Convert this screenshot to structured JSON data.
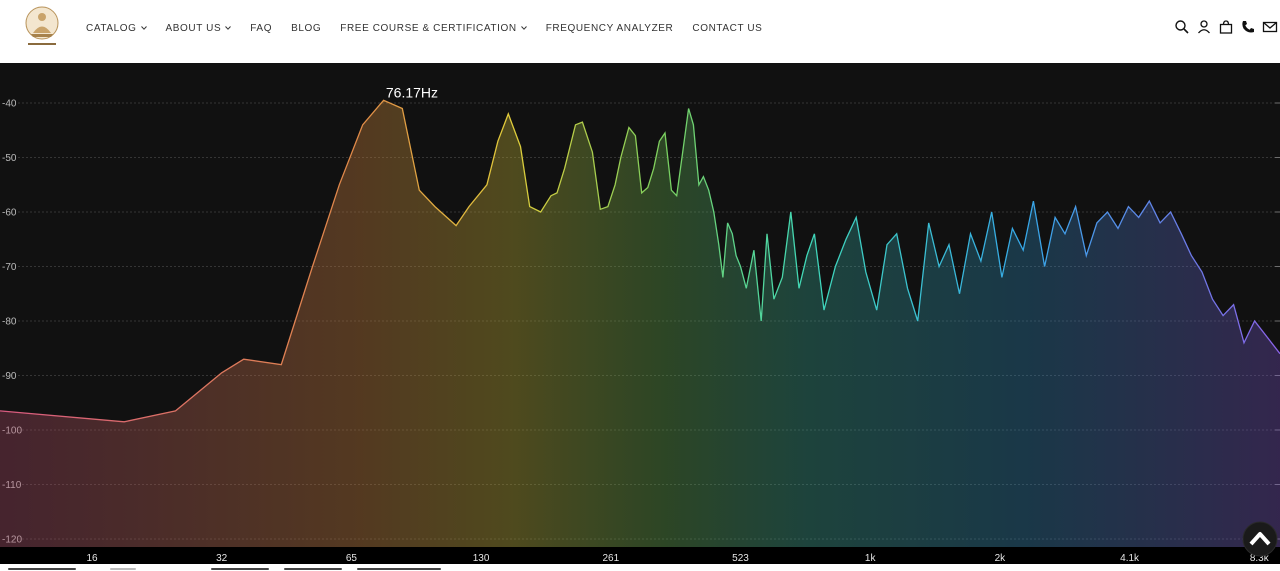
{
  "header": {
    "logo_icon": "buddha-logo-icon",
    "nav": [
      {
        "label": "CATALOG",
        "has_dropdown": true
      },
      {
        "label": "ABOUT US",
        "has_dropdown": true
      },
      {
        "label": "FAQ",
        "has_dropdown": false
      },
      {
        "label": "BLOG",
        "has_dropdown": false
      },
      {
        "label": "FREE COURSE & CERTIFICATION",
        "has_dropdown": true
      },
      {
        "label": "FREQUENCY ANALYZER",
        "has_dropdown": false
      },
      {
        "label": "CONTACT US",
        "has_dropdown": false
      }
    ],
    "icons": [
      "search-icon",
      "account-icon",
      "cart-icon",
      "phone-icon",
      "mail-icon"
    ]
  },
  "analyzer": {
    "peak_label": "76.17Hz",
    "scroll_button_icon": "scroll-up-icon"
  },
  "chart_data": {
    "type": "area",
    "x_scale": "log",
    "y_unit": "dB",
    "y_ticks": [
      "-40",
      "-50",
      "-60",
      "-70",
      "-80",
      "-90",
      "-100",
      "-110",
      "-120"
    ],
    "ylim": [
      -122,
      -34
    ],
    "x_ticks": [
      "16",
      "32",
      "65",
      "130",
      "261",
      "523",
      "1k",
      "2k",
      "4.1k",
      "8.3k"
    ],
    "grid": true,
    "peak": {
      "x": 76.17,
      "y": -39.5
    },
    "x": [
      10,
      19,
      25,
      32,
      36,
      44,
      52,
      60,
      68,
      76,
      84,
      92,
      100,
      112,
      120,
      132,
      140,
      148,
      158,
      166,
      176,
      186,
      192,
      200,
      212,
      220,
      232,
      242,
      252,
      262,
      270,
      282,
      292,
      302,
      312,
      322,
      332,
      342,
      354,
      364,
      376,
      388,
      398,
      410,
      420,
      432,
      444,
      456,
      466,
      478,
      490,
      500,
      512,
      528,
      550,
      572,
      590,
      612,
      640,
      670,
      700,
      730,
      760,
      800,
      850,
      900,
      950,
      1000,
      1060,
      1120,
      1180,
      1250,
      1320,
      1400,
      1480,
      1560,
      1650,
      1750,
      1850,
      1960,
      2070,
      2190,
      2320,
      2450,
      2600,
      2750,
      2900,
      3070,
      3250,
      3440,
      3640,
      3850,
      4070,
      4300,
      4550,
      4820,
      5100,
      5400,
      5700,
      6030,
      6380,
      6750,
      7140,
      7550,
      7990,
      8300
    ],
    "y": [
      -96.5,
      -98.5,
      -96.5,
      -89.5,
      -87,
      -88,
      -70,
      -55,
      -44,
      -39.5,
      -41,
      -56,
      -59,
      -62.5,
      -59,
      -55,
      -47,
      -42,
      -48,
      -59,
      -60,
      -57,
      -56.5,
      -52,
      -44,
      -43.5,
      -49,
      -59.5,
      -59,
      -55,
      -50,
      -44.5,
      -46,
      -56.5,
      -55.5,
      -52,
      -47,
      -45.5,
      -56,
      -57,
      -49,
      -41,
      -44,
      -55,
      -53.5,
      -56,
      -60,
      -66,
      -72,
      -62,
      -64,
      -68,
      -70,
      -74,
      -67,
      -80,
      -64,
      -76,
      -72,
      -60,
      -74,
      -68,
      -64,
      -78,
      -70,
      -65,
      -61,
      -71,
      -78,
      -66,
      -64,
      -74,
      -80,
      -62,
      -70,
      -66,
      -75,
      -64,
      -69,
      -60,
      -72,
      -63,
      -67,
      -58,
      -70,
      -61,
      -64,
      -59,
      -68,
      -62,
      -60,
      -63,
      -59,
      -61,
      -58,
      -62,
      -60,
      -64,
      -68,
      -71,
      -76,
      -79,
      -77,
      -84,
      -80,
      -86
    ]
  }
}
